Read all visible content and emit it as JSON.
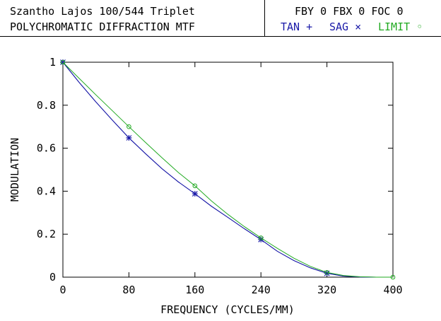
{
  "header": {
    "lens_title": "Szantho Lajos 100/544 Triplet",
    "plot_title": "POLYCHROMATIC DIFFRACTION MTF",
    "field_info": "FBY 0 FBX 0 FOC 0",
    "legend": {
      "tan": "TAN +",
      "sag": "SAG ×",
      "limit": "LIMIT ◦"
    }
  },
  "colors": {
    "tan": "#1a1aa8",
    "sag": "#1a1aa8",
    "limit": "#22aa22",
    "axis": "#000000"
  },
  "chart_data": {
    "type": "line",
    "title": "POLYCHROMATIC DIFFRACTION MTF",
    "xlabel": "FREQUENCY (CYCLES/MM)",
    "ylabel": "MODULATION",
    "xlim": [
      0,
      400
    ],
    "ylim": [
      0,
      1
    ],
    "x_ticks": [
      0,
      80,
      160,
      240,
      320,
      400
    ],
    "y_ticks": [
      0,
      0.2,
      0.4,
      0.6,
      0.8,
      1
    ],
    "y_tick_labels": [
      "0",
      "0.2",
      "0.4",
      "0.6",
      "0.8",
      "1"
    ],
    "series": [
      {
        "name": "TAN",
        "marker": "+",
        "x": [
          0,
          20,
          40,
          60,
          80,
          100,
          120,
          140,
          160,
          180,
          200,
          220,
          240,
          260,
          280,
          300,
          320,
          340,
          360,
          380,
          400
        ],
        "y": [
          1.0,
          0.905,
          0.815,
          0.73,
          0.648,
          0.575,
          0.505,
          0.443,
          0.388,
          0.33,
          0.278,
          0.225,
          0.175,
          0.12,
          0.077,
          0.043,
          0.018,
          0.005,
          0.001,
          0.0,
          0.0
        ],
        "marker_x": [
          0,
          80,
          160,
          240,
          320
        ],
        "marker_y": [
          1.0,
          0.648,
          0.388,
          0.175,
          0.018
        ]
      },
      {
        "name": "SAG",
        "marker": "×",
        "x": [
          0,
          20,
          40,
          60,
          80,
          100,
          120,
          140,
          160,
          180,
          200,
          220,
          240,
          260,
          280,
          300,
          320,
          340,
          360,
          380,
          400
        ],
        "y": [
          1.0,
          0.905,
          0.815,
          0.73,
          0.648,
          0.575,
          0.505,
          0.443,
          0.388,
          0.33,
          0.278,
          0.225,
          0.175,
          0.12,
          0.077,
          0.043,
          0.018,
          0.005,
          0.001,
          0.0,
          0.0
        ],
        "marker_x": [
          0,
          80,
          160,
          240,
          320
        ],
        "marker_y": [
          1.0,
          0.648,
          0.388,
          0.175,
          0.018
        ]
      },
      {
        "name": "LIMIT",
        "marker": "◦",
        "x": [
          0,
          20,
          40,
          60,
          80,
          100,
          120,
          140,
          160,
          180,
          200,
          220,
          240,
          260,
          280,
          300,
          320,
          340,
          360,
          380,
          400
        ],
        "y": [
          1.0,
          0.924,
          0.848,
          0.774,
          0.7,
          0.627,
          0.556,
          0.487,
          0.425,
          0.355,
          0.292,
          0.235,
          0.183,
          0.134,
          0.088,
          0.05,
          0.022,
          0.008,
          0.002,
          0.0,
          0.0
        ],
        "marker_x": [
          0,
          80,
          160,
          240,
          320,
          400
        ],
        "marker_y": [
          1.0,
          0.7,
          0.425,
          0.183,
          0.022,
          0.0
        ]
      }
    ],
    "grid": false,
    "legend_position": "header-right"
  }
}
